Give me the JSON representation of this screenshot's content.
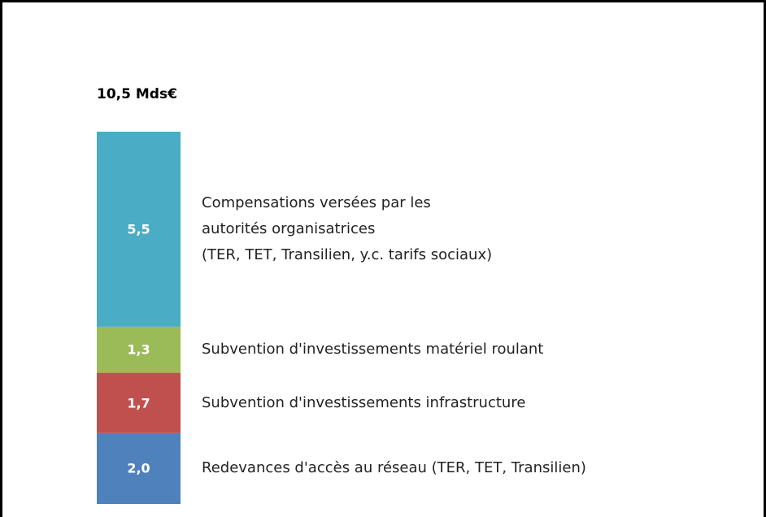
{
  "chart_data": {
    "type": "stacked_bar",
    "title": "10,5 Mds€",
    "series": [
      {
        "name": "Redevances d'accès au réseau (TER, TET, Transilien)",
        "color": "#4f81bd",
        "values": [
          2.0
        ],
        "value_labels": [
          "2,0"
        ]
      },
      {
        "name": "Subvention d'investissements infrastructure",
        "color": "#c0504d",
        "values": [
          1.7
        ],
        "value_labels": [
          "1,7"
        ]
      },
      {
        "name": "Subvention d'investissements matériel roulant",
        "color": "#9bbb59",
        "values": [
          1.3
        ],
        "value_labels": [
          "1,3"
        ]
      },
      {
        "name": "Compensations versées par les\nautorités organisatrices\n(TER, TET, Transilien, y.c. tarifs sociaux)",
        "color": "#4bacc6",
        "values": [
          5.5
        ],
        "value_labels": [
          "5,5"
        ]
      }
    ]
  }
}
